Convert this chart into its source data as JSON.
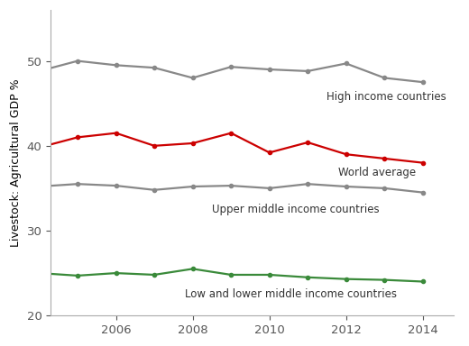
{
  "years": [
    2004,
    2005,
    2006,
    2007,
    2008,
    2009,
    2010,
    2011,
    2012,
    2013,
    2014
  ],
  "high_income": [
    48.8,
    50.0,
    49.5,
    49.2,
    48.0,
    49.3,
    49.0,
    48.8,
    49.7,
    48.0,
    47.5
  ],
  "world_average": [
    39.8,
    41.0,
    41.5,
    40.0,
    40.3,
    41.5,
    39.2,
    40.4,
    39.0,
    38.5,
    38.0
  ],
  "upper_middle": [
    35.2,
    35.5,
    35.3,
    34.8,
    35.2,
    35.3,
    35.0,
    35.5,
    35.2,
    35.0,
    34.5
  ],
  "low_lower_middle": [
    25.0,
    24.7,
    25.0,
    24.8,
    25.5,
    24.8,
    24.8,
    24.5,
    24.3,
    24.2,
    24.0
  ],
  "high_income_color": "#888888",
  "world_average_color": "#cc0000",
  "upper_middle_color": "#888888",
  "low_lower_middle_color": "#3a8a3a",
  "ylabel": "Livestock: Agricultural GDP %",
  "ylim": [
    20,
    56
  ],
  "yticks": [
    20,
    30,
    40,
    50
  ],
  "label_high_income": "High income countries",
  "label_world_average": "World average",
  "label_upper_middle": "Upper middle income countries",
  "label_low_lower_middle": "Low and lower middle income countries",
  "marker_size": 3.0,
  "linewidth": 1.6,
  "label_fontsize": 8.5,
  "tick_fontsize": 9.5,
  "ylabel_fontsize": 9.0
}
